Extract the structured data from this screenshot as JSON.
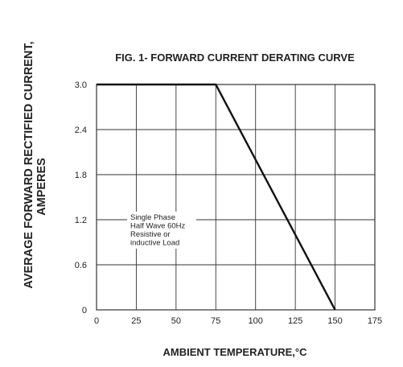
{
  "chart_data": {
    "type": "line",
    "title": "FIG. 1- FORWARD CURRENT DERATING CURVE",
    "xlabel": "AMBIENT TEMPERATURE,°C",
    "ylabel_line1": "AVERAGE FORWARD RECTIFIED CURRENT,",
    "ylabel_line2": "AMPERES",
    "xlim": [
      0,
      175
    ],
    "ylim": [
      0,
      3.0
    ],
    "x_ticks": [
      0,
      25,
      50,
      75,
      100,
      125,
      150,
      175
    ],
    "y_ticks": [
      0,
      0.6,
      1.2,
      1.8,
      2.4,
      3.0
    ],
    "x_tick_labels": [
      "0",
      "25",
      "50",
      "75",
      "100",
      "125",
      "150",
      "175"
    ],
    "y_tick_labels": [
      "0",
      "0.6",
      "1.2",
      "1.8",
      "2.4",
      "3.0"
    ],
    "grid": true,
    "series": [
      {
        "x": [
          0,
          75,
          150
        ],
        "y": [
          3.0,
          3.0,
          0
        ]
      }
    ],
    "annotation": [
      "Single Phase",
      "Half Wave 60Hz",
      "Resistive or",
      "inductive Load"
    ]
  },
  "colors": {
    "line": "#111111",
    "grid": "#333333",
    "text": "#222222"
  }
}
